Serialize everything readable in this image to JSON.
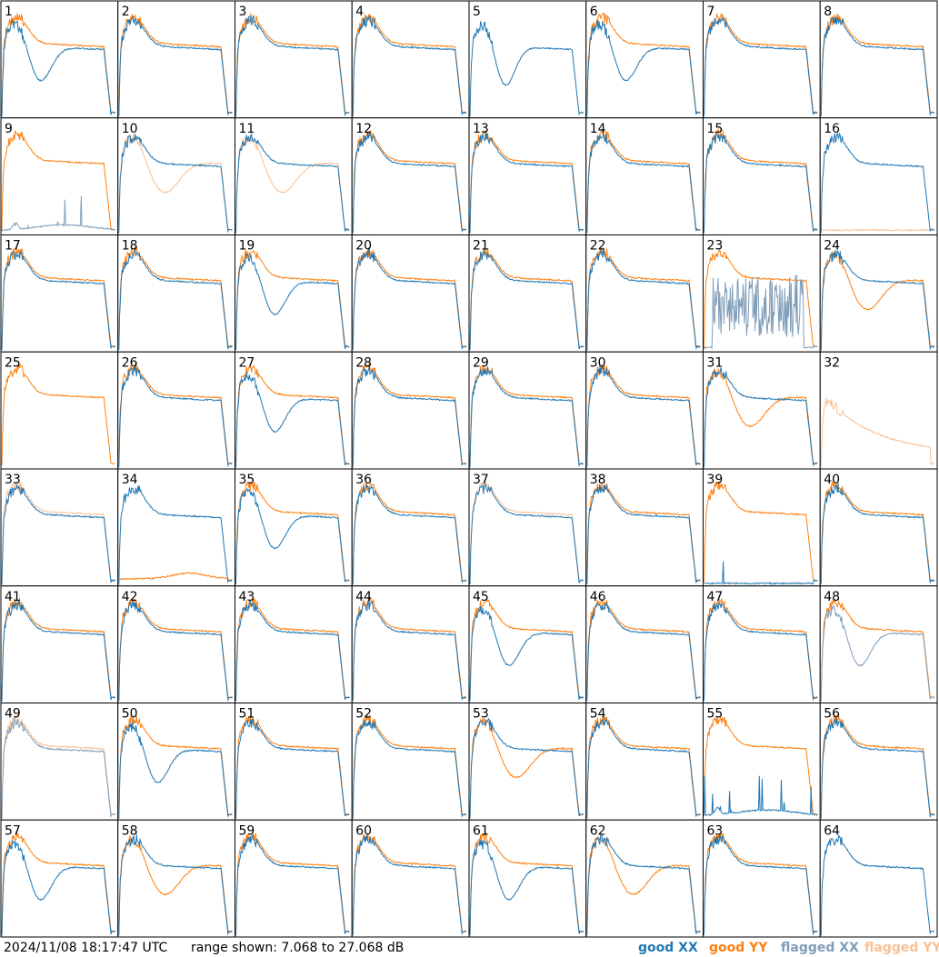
{
  "footer": {
    "timestamp": "2024/11/08 18:17:47 UTC",
    "range_text": "range shown: 7.068 to 27.068 dB"
  },
  "legend": [
    {
      "key": "good_xx",
      "label": "good XX",
      "color": "#1f77b4"
    },
    {
      "key": "good_yy",
      "label": "good YY",
      "color": "#ff7f0e"
    },
    {
      "key": "flagged_xx",
      "label": "flagged XX",
      "color": "#7f9db8"
    },
    {
      "key": "flagged_yy",
      "label": "flagged YY",
      "color": "#f7c095"
    }
  ],
  "chart_data": {
    "type": "line",
    "grid": {
      "rows": 8,
      "cols": 8
    },
    "ylim": [
      7.068,
      27.068
    ],
    "yunit": "dB",
    "panels": [
      {
        "label": "1",
        "xx": "good",
        "yy": "good",
        "shape": "xx_dip"
      },
      {
        "label": "2",
        "xx": "good",
        "yy": "good",
        "shape": "normal"
      },
      {
        "label": "3",
        "xx": "good",
        "yy": "good",
        "shape": "normal"
      },
      {
        "label": "4",
        "xx": "good",
        "yy": "good",
        "shape": "normal"
      },
      {
        "label": "5",
        "xx": "good",
        "yy": "none",
        "shape": "dip"
      },
      {
        "label": "6",
        "xx": "good",
        "yy": "good",
        "shape": "xx_dip"
      },
      {
        "label": "7",
        "xx": "good",
        "yy": "good",
        "shape": "normal"
      },
      {
        "label": "8",
        "xx": "good",
        "yy": "good",
        "shape": "normal"
      },
      {
        "label": "9",
        "xx": "flagged",
        "yy": "good",
        "shape": "xx_low"
      },
      {
        "label": "10",
        "xx": "good",
        "yy": "flagged",
        "shape": "yy_dip"
      },
      {
        "label": "11",
        "xx": "good",
        "yy": "flagged",
        "shape": "yy_dip"
      },
      {
        "label": "12",
        "xx": "good",
        "yy": "good",
        "shape": "normal"
      },
      {
        "label": "13",
        "xx": "good",
        "yy": "good",
        "shape": "normal"
      },
      {
        "label": "14",
        "xx": "good",
        "yy": "good",
        "shape": "normal"
      },
      {
        "label": "15",
        "xx": "good",
        "yy": "good",
        "shape": "normal"
      },
      {
        "label": "16",
        "xx": "good",
        "yy": "flagged",
        "shape": "yy_floor"
      },
      {
        "label": "17",
        "xx": "good",
        "yy": "good",
        "shape": "normal"
      },
      {
        "label": "18",
        "xx": "good",
        "yy": "good",
        "shape": "normal"
      },
      {
        "label": "19",
        "xx": "good",
        "yy": "good",
        "shape": "xx_dip"
      },
      {
        "label": "20",
        "xx": "good",
        "yy": "good",
        "shape": "normal"
      },
      {
        "label": "21",
        "xx": "good",
        "yy": "good",
        "shape": "normal"
      },
      {
        "label": "22",
        "xx": "good",
        "yy": "good",
        "shape": "normal"
      },
      {
        "label": "23",
        "xx": "flagged",
        "yy": "good",
        "shape": "xx_noise"
      },
      {
        "label": "24",
        "xx": "good",
        "yy": "good",
        "shape": "yy_dip"
      },
      {
        "label": "25",
        "xx": "none",
        "yy": "good",
        "shape": "normal"
      },
      {
        "label": "26",
        "xx": "good",
        "yy": "good",
        "shape": "normal"
      },
      {
        "label": "27",
        "xx": "good",
        "yy": "good",
        "shape": "xx_dip"
      },
      {
        "label": "28",
        "xx": "good",
        "yy": "good",
        "shape": "normal"
      },
      {
        "label": "29",
        "xx": "good",
        "yy": "good",
        "shape": "normal"
      },
      {
        "label": "30",
        "xx": "good",
        "yy": "good",
        "shape": "normal"
      },
      {
        "label": "31",
        "xx": "good",
        "yy": "good",
        "shape": "yy_dip"
      },
      {
        "label": "32",
        "xx": "none",
        "yy": "flagged",
        "shape": "decline"
      },
      {
        "label": "33",
        "xx": "good",
        "yy": "flagged",
        "shape": "normal"
      },
      {
        "label": "34",
        "xx": "good",
        "yy": "good",
        "shape": "yy_low"
      },
      {
        "label": "35",
        "xx": "good",
        "yy": "good",
        "shape": "xx_dip"
      },
      {
        "label": "36",
        "xx": "good",
        "yy": "good",
        "shape": "normal"
      },
      {
        "label": "37",
        "xx": "good",
        "yy": "flagged",
        "shape": "normal"
      },
      {
        "label": "38",
        "xx": "good",
        "yy": "good",
        "shape": "normal"
      },
      {
        "label": "39",
        "xx": "good",
        "yy": "good",
        "shape": "xx_spike"
      },
      {
        "label": "40",
        "xx": "good",
        "yy": "good",
        "shape": "normal"
      },
      {
        "label": "41",
        "xx": "good",
        "yy": "good",
        "shape": "normal"
      },
      {
        "label": "42",
        "xx": "good",
        "yy": "good",
        "shape": "normal"
      },
      {
        "label": "43",
        "xx": "good",
        "yy": "good",
        "shape": "normal"
      },
      {
        "label": "44",
        "xx": "good",
        "yy": "good",
        "shape": "normal"
      },
      {
        "label": "45",
        "xx": "good",
        "yy": "good",
        "shape": "xx_dip"
      },
      {
        "label": "46",
        "xx": "good",
        "yy": "good",
        "shape": "normal"
      },
      {
        "label": "47",
        "xx": "good",
        "yy": "good",
        "shape": "normal"
      },
      {
        "label": "48",
        "xx": "flagged",
        "yy": "good",
        "shape": "xx_dip"
      },
      {
        "label": "49",
        "xx": "flagged",
        "yy": "flagged",
        "shape": "normal"
      },
      {
        "label": "50",
        "xx": "good",
        "yy": "good",
        "shape": "xx_dip"
      },
      {
        "label": "51",
        "xx": "good",
        "yy": "good",
        "shape": "normal"
      },
      {
        "label": "52",
        "xx": "good",
        "yy": "good",
        "shape": "normal"
      },
      {
        "label": "53",
        "xx": "good",
        "yy": "good",
        "shape": "yy_dip"
      },
      {
        "label": "54",
        "xx": "good",
        "yy": "good",
        "shape": "normal"
      },
      {
        "label": "55",
        "xx": "good",
        "yy": "good",
        "shape": "xx_low"
      },
      {
        "label": "56",
        "xx": "good",
        "yy": "good",
        "shape": "normal"
      },
      {
        "label": "57",
        "xx": "good",
        "yy": "good",
        "shape": "xx_dip"
      },
      {
        "label": "58",
        "xx": "good",
        "yy": "good",
        "shape": "yy_dip"
      },
      {
        "label": "59",
        "xx": "good",
        "yy": "good",
        "shape": "normal"
      },
      {
        "label": "60",
        "xx": "good",
        "yy": "good",
        "shape": "normal"
      },
      {
        "label": "61",
        "xx": "good",
        "yy": "good",
        "shape": "xx_dip"
      },
      {
        "label": "62",
        "xx": "good",
        "yy": "good",
        "shape": "yy_dip"
      },
      {
        "label": "63",
        "xx": "good",
        "yy": "good",
        "shape": "normal"
      },
      {
        "label": "64",
        "xx": "good",
        "yy": "none",
        "shape": "normal"
      }
    ]
  }
}
